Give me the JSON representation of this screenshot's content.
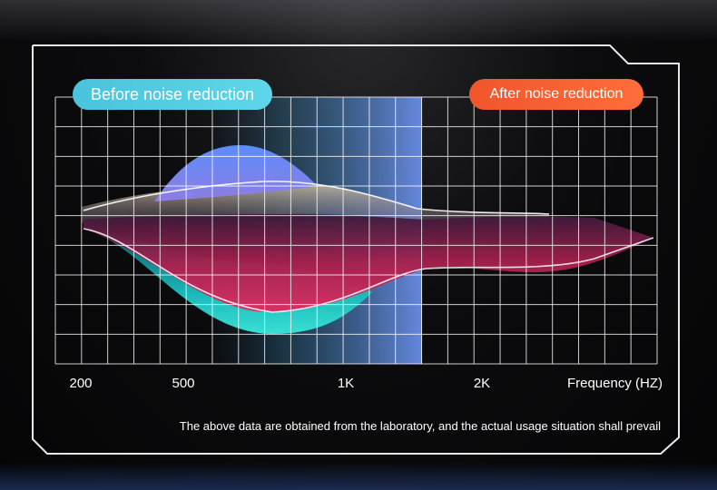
{
  "chart_data": {
    "type": "area",
    "title": "",
    "xlabel": "Frequency (HZ)",
    "ylabel": "",
    "x_ticks": [
      "200",
      "500",
      "1K",
      "2K"
    ],
    "grid": true,
    "highlighted_band": [
      "200",
      "1K"
    ],
    "series": [
      {
        "name": "Before noise reduction",
        "color": "#55cde4"
      },
      {
        "name": "After noise reduction",
        "color": "#f5602e"
      }
    ]
  },
  "labels": {
    "before": "Before noise reduction",
    "after": "After noise reduction",
    "axis_title": "Frequency (HZ)",
    "footnote": "The above data are obtained from the laboratory, and the actual usage situation shall prevail"
  }
}
